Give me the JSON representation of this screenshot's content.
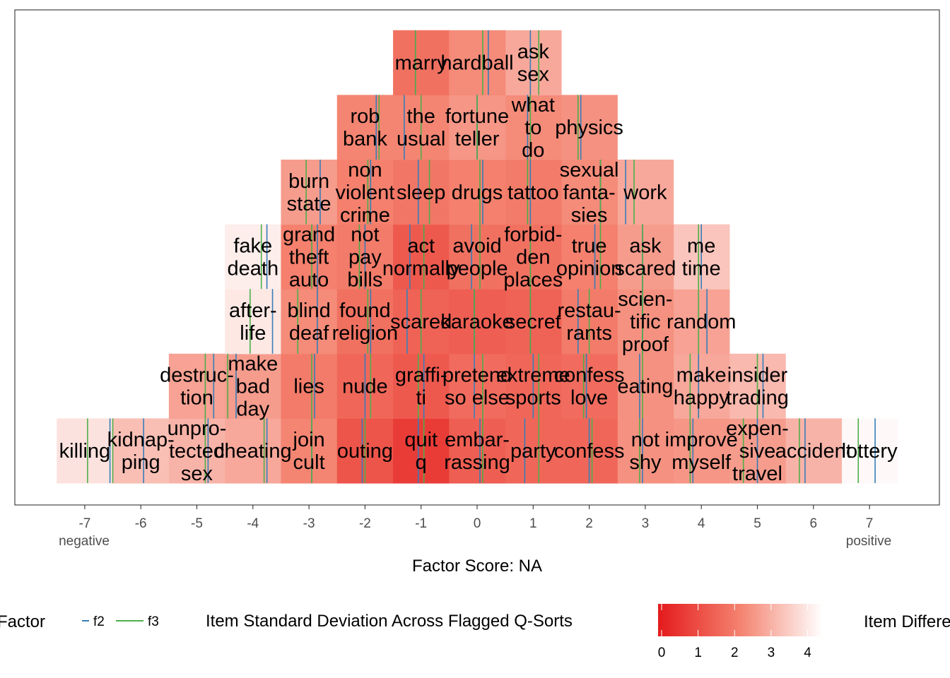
{
  "chart_data": {
    "type": "heatmap",
    "title": "",
    "xlabel": "Factor Score: NA",
    "x_ticks": [
      -7,
      -6,
      -5,
      -4,
      -3,
      -2,
      -1,
      0,
      1,
      2,
      3,
      4,
      5,
      6,
      7
    ],
    "x_tick_labels": [
      "-7",
      "-6",
      "-5",
      "-4",
      "-3",
      "-2",
      "-1",
      "0",
      "1",
      "2",
      "3",
      "4",
      "5",
      "6",
      "7"
    ],
    "xlim": [
      -8.3,
      8.3
    ],
    "end_labels": {
      "negative": "negative",
      "positive": "positive"
    },
    "legend": {
      "factor_title": "Factor",
      "factor_series": [
        {
          "name": "f2",
          "color": "#377eb8"
        },
        {
          "name": "f3",
          "color": "#4daf4a"
        }
      ],
      "sd_title": "Item Standard Deviation Across Flagged Q-Sorts",
      "sd_ticks": [
        "0",
        "1",
        "2",
        "3",
        "4"
      ],
      "sd_range": [
        0,
        4.3
      ],
      "sd_colors": {
        "low": "#e41a1c",
        "high": "#ffffff"
      },
      "difference_title": "Item Differe"
    },
    "items": [
      {
        "label": [
          "killing"
        ],
        "score": -7,
        "row": 1,
        "sd": 3.8,
        "f2": -6.55,
        "f3": -6.95
      },
      {
        "label": [
          "lottery"
        ],
        "score": 7,
        "row": 1,
        "sd": 4.2,
        "f2": 7.1,
        "f3": 6.8
      },
      {
        "label": [
          "kidnap-",
          "ping"
        ],
        "score": -6,
        "row": 1,
        "sd": 3.2,
        "f2": -5.95,
        "f3": -6.5
      },
      {
        "label": [
          "accident"
        ],
        "score": 6,
        "row": 1,
        "sd": 3.0,
        "f2": 5.85,
        "f3": 5.75
      },
      {
        "label": [
          "unpro-",
          "tected",
          "sex"
        ],
        "score": -5,
        "row": 1,
        "sd": 3.0,
        "f2": -4.8,
        "f3": -4.85
      },
      {
        "label": [
          "destruc-",
          "tion"
        ],
        "score": -5,
        "row": 2,
        "sd": 2.7,
        "f2": -4.7,
        "f3": -4.85
      },
      {
        "label": [
          "expen-",
          "sive",
          "travel"
        ],
        "score": 5,
        "row": 1,
        "sd": 2.6,
        "f2": 5.0,
        "f3": 4.75
      },
      {
        "label": [
          "insider",
          "trading"
        ],
        "score": 5,
        "row": 2,
        "sd": 3.1,
        "f2": 5.1,
        "f3": 5.0
      },
      {
        "label": [
          "cheating"
        ],
        "score": -4,
        "row": 1,
        "sd": 2.8,
        "f2": -3.75,
        "f3": -3.8
      },
      {
        "label": [
          "make",
          "bad",
          "day"
        ],
        "score": -4,
        "row": 2,
        "sd": 2.6,
        "f2": -4.3,
        "f3": -4.45
      },
      {
        "label": [
          "after-",
          "life"
        ],
        "score": -4,
        "row": 3,
        "sd": 3.9,
        "f2": -3.65,
        "f3": -4.05
      },
      {
        "label": [
          "fake",
          "death"
        ],
        "score": -4,
        "row": 4,
        "sd": 4.0,
        "f2": -3.75,
        "f3": -3.85
      },
      {
        "label": [
          "improve",
          "myself"
        ],
        "score": 4,
        "row": 1,
        "sd": 2.5,
        "f2": 3.85,
        "f3": 3.8
      },
      {
        "label": [
          "make",
          "happy"
        ],
        "score": 4,
        "row": 2,
        "sd": 2.8,
        "f2": 3.95,
        "f3": 3.8
      },
      {
        "label": [
          "random"
        ],
        "score": 4,
        "row": 3,
        "sd": 2.7,
        "f2": 4.1,
        "f3": 3.95
      },
      {
        "label": [
          "me",
          "time"
        ],
        "score": 4,
        "row": 4,
        "sd": 3.3,
        "f2": 4.0,
        "f3": 3.95
      },
      {
        "label": [
          "join",
          "cult"
        ],
        "score": -3,
        "row": 1,
        "sd": 2.2,
        "f2": -2.95,
        "f3": -2.95
      },
      {
        "label": [
          "lies"
        ],
        "score": -3,
        "row": 2,
        "sd": 2.0,
        "f2": -2.9,
        "f3": -2.95
      },
      {
        "label": [
          "blind",
          "deaf"
        ],
        "score": -3,
        "row": 3,
        "sd": 2.3,
        "f2": -2.85,
        "f3": -3.2
      },
      {
        "label": [
          "grand",
          "theft",
          "auto"
        ],
        "score": -3,
        "row": 4,
        "sd": 2.1,
        "f2": -2.85,
        "f3": -2.95
      },
      {
        "label": [
          "burn",
          "state"
        ],
        "score": -3,
        "row": 5,
        "sd": 2.6,
        "f2": -2.8,
        "f3": -3.05
      },
      {
        "label": [
          "not",
          "shy"
        ],
        "score": 3,
        "row": 1,
        "sd": 2.4,
        "f2": 2.95,
        "f3": 2.9
      },
      {
        "label": [
          "eating"
        ],
        "score": 3,
        "row": 2,
        "sd": 2.4,
        "f2": 2.9,
        "f3": 2.95
      },
      {
        "label": [
          "scien-",
          "tific",
          "proof"
        ],
        "score": 3,
        "row": 3,
        "sd": 2.4,
        "f2": 2.95,
        "f3": 2.95
      },
      {
        "label": [
          "ask",
          "scared"
        ],
        "score": 3,
        "row": 4,
        "sd": 2.6,
        "f2": 2.95,
        "f3": 2.95
      },
      {
        "label": [
          "work"
        ],
        "score": 3,
        "row": 5,
        "sd": 2.8,
        "f2": 2.65,
        "f3": 2.8
      },
      {
        "label": [
          "outing"
        ],
        "score": -2,
        "row": 1,
        "sd": 1.2,
        "f2": -2.05,
        "f3": -2.0
      },
      {
        "label": [
          "nude"
        ],
        "score": -2,
        "row": 2,
        "sd": 1.6,
        "f2": -2.0,
        "f3": -1.9
      },
      {
        "label": [
          "found",
          "religion"
        ],
        "score": -2,
        "row": 3,
        "sd": 1.8,
        "f2": -1.9,
        "f3": -1.95
      },
      {
        "label": [
          "not",
          "pay",
          "bills"
        ],
        "score": -2,
        "row": 4,
        "sd": 2.0,
        "f2": -2.0,
        "f3": -2.1
      },
      {
        "label": [
          "non",
          "violent",
          "crime"
        ],
        "score": -2,
        "row": 5,
        "sd": 2.1,
        "f2": -1.9,
        "f3": -1.95
      },
      {
        "label": [
          "rob",
          "bank"
        ],
        "score": -2,
        "row": 6,
        "sd": 2.2,
        "f2": -1.8,
        "f3": -1.75
      },
      {
        "label": [
          "confess"
        ],
        "score": 2,
        "row": 1,
        "sd": 1.6,
        "f2": 2.0,
        "f3": 2.05
      },
      {
        "label": [
          "confess",
          "love"
        ],
        "score": 2,
        "row": 2,
        "sd": 1.7,
        "f2": 1.95,
        "f3": 1.9
      },
      {
        "label": [
          "restau-",
          "rants"
        ],
        "score": 2,
        "row": 3,
        "sd": 2.0,
        "f2": 1.8,
        "f3": 2.0
      },
      {
        "label": [
          "true",
          "opinion"
        ],
        "score": 2,
        "row": 4,
        "sd": 2.1,
        "f2": 2.1,
        "f3": 2.2
      },
      {
        "label": [
          "sexual",
          "fanta-",
          "sies"
        ],
        "score": 2,
        "row": 5,
        "sd": 2.3,
        "f2": 2.2,
        "f3": 2.2
      },
      {
        "label": [
          "physics"
        ],
        "score": 2,
        "row": 6,
        "sd": 2.4,
        "f2": 1.85,
        "f3": 1.8
      },
      {
        "label": [
          "quit",
          "q"
        ],
        "score": -1,
        "row": 1,
        "sd": 0.7,
        "f2": -1.05,
        "f3": -0.95
      },
      {
        "label": [
          "graffi-",
          "ti"
        ],
        "score": -1,
        "row": 2,
        "sd": 1.3,
        "f2": -0.95,
        "f3": -1.05
      },
      {
        "label": [
          "scared"
        ],
        "score": -1,
        "row": 3,
        "sd": 1.5,
        "f2": -1.25,
        "f3": -1.0
      },
      {
        "label": [
          "act",
          "normally"
        ],
        "score": -1,
        "row": 4,
        "sd": 1.3,
        "f2": -1.2,
        "f3": -0.95
      },
      {
        "label": [
          "sleep"
        ],
        "score": -1,
        "row": 5,
        "sd": 1.9,
        "f2": -1.05,
        "f3": -0.85
      },
      {
        "label": [
          "the",
          "usual"
        ],
        "score": -1,
        "row": 6,
        "sd": 2.2,
        "f2": -1.3,
        "f3": -1.0
      },
      {
        "label": [
          "marry"
        ],
        "score": -1,
        "row": 7,
        "sd": 1.8,
        "f2": -1.1,
        "f3": -1.1
      },
      {
        "label": [
          "party"
        ],
        "score": 1,
        "row": 1,
        "sd": 1.6,
        "f2": 0.85,
        "f3": 1.1
      },
      {
        "label": [
          "extreme",
          "sports"
        ],
        "score": 1,
        "row": 2,
        "sd": 1.6,
        "f2": 1.0,
        "f3": 1.1
      },
      {
        "label": [
          "secret"
        ],
        "score": 1,
        "row": 3,
        "sd": 1.5,
        "f2": 0.95,
        "f3": 0.95
      },
      {
        "label": [
          "forbid-",
          "den",
          "places"
        ],
        "score": 1,
        "row": 4,
        "sd": 1.8,
        "f2": 0.95,
        "f3": 0.95
      },
      {
        "label": [
          "tattoo"
        ],
        "score": 1,
        "row": 5,
        "sd": 2.0,
        "f2": 0.95,
        "f3": 0.9
      },
      {
        "label": [
          "what",
          "to",
          "do"
        ],
        "score": 1,
        "row": 6,
        "sd": 2.3,
        "f2": 0.9,
        "f3": 0.95
      },
      {
        "label": [
          "ask",
          "sex"
        ],
        "score": 1,
        "row": 7,
        "sd": 2.8,
        "f2": 0.95,
        "f3": 1.1
      },
      {
        "label": [
          "embar-",
          "rassing"
        ],
        "score": 0,
        "row": 1,
        "sd": 1.4,
        "f2": 0.05,
        "f3": 0.1
      },
      {
        "label": [
          "pretend",
          "so else"
        ],
        "score": 0,
        "row": 2,
        "sd": 1.7,
        "f2": -0.05,
        "f3": 0.1
      },
      {
        "label": [
          "karaoke"
        ],
        "score": 0,
        "row": 3,
        "sd": 1.4,
        "f2": -0.05,
        "f3": -0.05
      },
      {
        "label": [
          "avoid",
          "people"
        ],
        "score": 0,
        "row": 4,
        "sd": 1.8,
        "f2": -0.1,
        "f3": 0.05
      },
      {
        "label": [
          "drugs"
        ],
        "score": 0,
        "row": 5,
        "sd": 2.1,
        "f2": 0.1,
        "f3": 0.05
      },
      {
        "label": [
          "fortune",
          "teller"
        ],
        "score": 0,
        "row": 6,
        "sd": 2.5,
        "f2": 0.0,
        "f3": 0.0
      },
      {
        "label": [
          "hardball"
        ],
        "score": 0,
        "row": 7,
        "sd": 2.3,
        "f2": 0.2,
        "f3": 0.1
      }
    ]
  }
}
